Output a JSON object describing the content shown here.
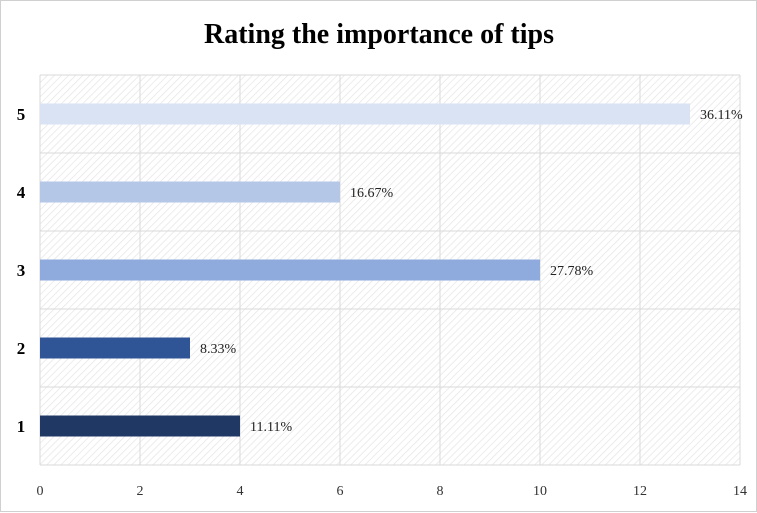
{
  "chart_data": {
    "type": "bar",
    "orientation": "horizontal",
    "title": "Rating the importance of tips",
    "xlabel": "",
    "ylabel": "",
    "categories": [
      "1",
      "2",
      "3",
      "4",
      "5"
    ],
    "values": [
      4,
      3,
      10,
      6,
      13
    ],
    "data_labels": [
      "11.11%",
      "8.33%",
      "27.78%",
      "16.67%",
      "36.11%"
    ],
    "xlim": [
      0,
      14
    ],
    "x_ticks": [
      "0",
      "2",
      "4",
      "6",
      "8",
      "10",
      "12",
      "14"
    ],
    "grid": true,
    "legend": "none",
    "colors": [
      "#1f3864",
      "#2f5597",
      "#8faadc",
      "#b4c7e7",
      "#dae3f3"
    ]
  }
}
